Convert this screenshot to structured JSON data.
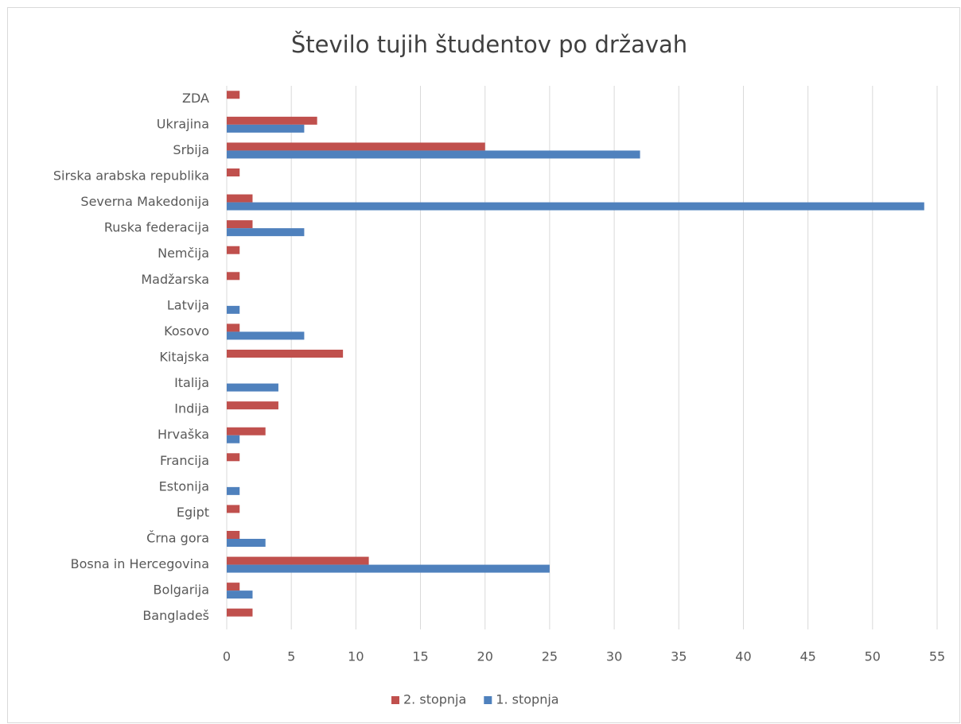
{
  "chart_data": {
    "type": "bar",
    "orientation": "horizontal",
    "title": "Število tujih študentov po državah",
    "categories": [
      "ZDA",
      "Ukrajina",
      "Srbija",
      "Sirska arabska republika",
      "Severna Makedonija",
      "Ruska federacija",
      "Nemčija",
      "Madžarska",
      "Latvija",
      "Kosovo",
      "Kitajska",
      "Italija",
      "Indija",
      "Hrvaška",
      "Francija",
      "Estonija",
      "Egipt",
      "Črna gora",
      "Bosna in Hercegovina",
      "Bolgarija",
      "Bangladeš"
    ],
    "series": [
      {
        "name": "2. stopnja",
        "color": "#c0504d",
        "values": [
          1,
          7,
          20,
          1,
          2,
          2,
          1,
          1,
          null,
          1,
          9,
          null,
          4,
          3,
          1,
          null,
          1,
          1,
          11,
          1,
          2
        ]
      },
      {
        "name": "1. stopnja",
        "color": "#4f81bd",
        "values": [
          null,
          6,
          32,
          null,
          54,
          6,
          null,
          null,
          1,
          6,
          null,
          4,
          null,
          1,
          null,
          1,
          null,
          3,
          25,
          2,
          null
        ]
      }
    ],
    "xlim": [
      0,
      55
    ],
    "xticks": [
      0,
      5,
      10,
      15,
      20,
      25,
      30,
      35,
      40,
      45,
      50,
      55
    ],
    "grid": true,
    "legend": "bottom"
  }
}
